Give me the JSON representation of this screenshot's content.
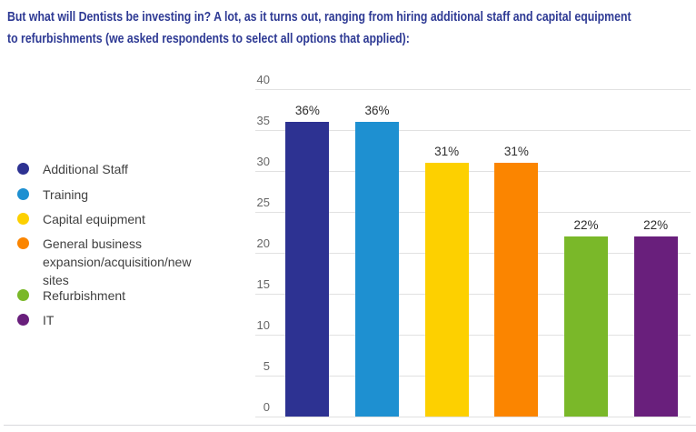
{
  "title": {
    "line1": "But what will Dentists be investing in? A lot, as it turns out, ranging from hiring additional staff and capital equipment",
    "line2": "to refurbishments (we asked respondents to select all options that applied):"
  },
  "colors": {
    "title_text": "#2e3a94",
    "gridline": "#e1e1e1",
    "axis_tick_label": "#666666",
    "bar_value_label": "#2d2d2d",
    "legend_text": "#3f3f3f",
    "divider": "#d9d9dd"
  },
  "chart_data": {
    "type": "bar",
    "title": "",
    "xlabel": "",
    "ylabel": "",
    "categories": [
      "Additional Staff",
      "Training",
      "Capital equipment",
      "General business expansion/acquisition/new sites",
      "Refurbishment",
      "IT"
    ],
    "values": [
      36,
      36,
      31,
      31,
      22,
      22
    ],
    "value_labels": [
      "36%",
      "36%",
      "31%",
      "31%",
      "22%",
      "22%"
    ],
    "bar_colors": [
      "#2d3292",
      "#1e90d1",
      "#fdd000",
      "#fb8500",
      "#7ab829",
      "#691f7c"
    ],
    "ylim": [
      0,
      40
    ],
    "yticks": [
      0,
      5,
      10,
      15,
      20,
      25,
      30,
      35,
      40
    ],
    "grid": true,
    "legend_position": "left"
  },
  "legend": {
    "items": [
      {
        "label": "Additional Staff",
        "color": "#2d3292"
      },
      {
        "label": "Training",
        "color": "#1e90d1"
      },
      {
        "label": "Capital equipment",
        "color": "#fdd000"
      },
      {
        "label": "General business expansion/acquisition/new sites",
        "color": "#fb8500"
      },
      {
        "label": "Refurbishment",
        "color": "#7ab829"
      },
      {
        "label": "IT",
        "color": "#691f7c"
      }
    ]
  }
}
